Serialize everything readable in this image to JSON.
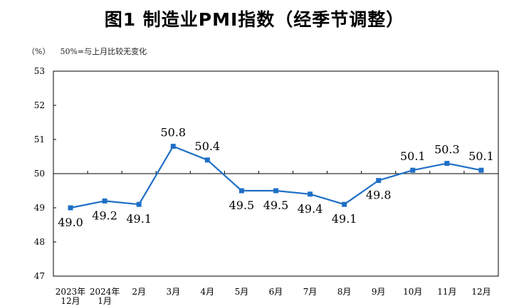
{
  "chart_data": {
    "type": "line",
    "title": "图1  制造业PMI指数（经季节调整）",
    "unit": "（%）",
    "reference_note": "50%=与上月比较无变化",
    "categories": [
      [
        "2023年",
        "12月"
      ],
      [
        "2024年",
        "1月"
      ],
      [
        "2月"
      ],
      [
        "3月"
      ],
      [
        "4月"
      ],
      [
        "5月"
      ],
      [
        "6月"
      ],
      [
        "7月"
      ],
      [
        "8月"
      ],
      [
        "9月"
      ],
      [
        "10月"
      ],
      [
        "11月"
      ],
      [
        "12月"
      ]
    ],
    "series": [
      {
        "values": [
          49.0,
          49.2,
          49.1,
          50.8,
          50.4,
          49.5,
          49.5,
          49.4,
          49.1,
          49.8,
          50.1,
          50.3,
          50.1
        ],
        "labels": [
          "49.0",
          "49.2",
          "49.1",
          "50.8",
          "50.4",
          "49.5",
          "49.5",
          "49.4",
          "49.1",
          "49.8",
          "50.1",
          "50.3",
          "50.1"
        ],
        "color": "#1f6fc6"
      }
    ],
    "yticks": [
      47,
      48,
      49,
      50,
      51,
      52,
      53
    ],
    "ylim": [
      47,
      53
    ],
    "reference_line": 50,
    "grid": false
  }
}
